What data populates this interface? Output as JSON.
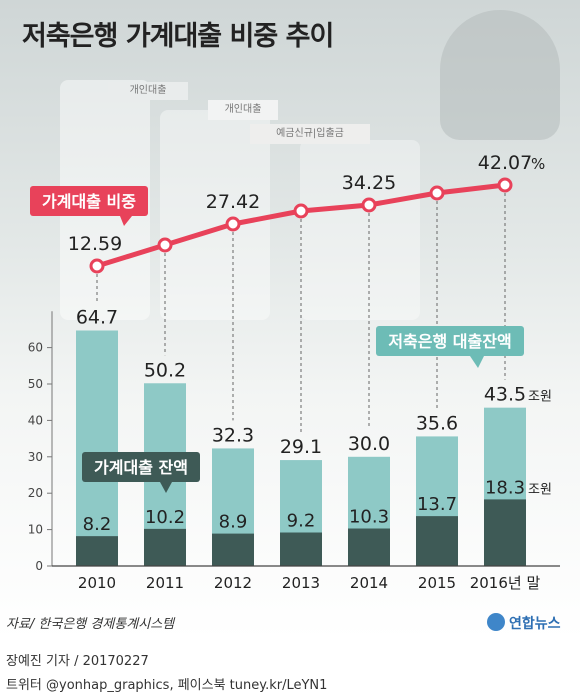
{
  "header": {
    "title": "저축은행 가계대출 비중 추이"
  },
  "background_signs": {
    "sign1": "개인대출",
    "sign2": "개인대출",
    "sign3": "예금신규|입출금"
  },
  "source": "자료/ 한국은행 경제통계시스템",
  "logo": "연합뉴스",
  "credit": "장예진 기자 / 20170227",
  "twitter": "트위터 @yonhap_graphics, 페이스북 tuney.kr/LeYN1",
  "colors": {
    "accent": "#e8425a",
    "total": "#8ec9c6",
    "household": "#3e5a56"
  },
  "chart_data": {
    "type": "bar",
    "categories": [
      "2010",
      "2011",
      "2012",
      "2013",
      "2014",
      "2015",
      "2016년 말"
    ],
    "ylim": [
      0,
      70
    ],
    "yticks": [
      "0",
      "10",
      "20",
      "30",
      "40",
      "50",
      "60"
    ],
    "series": [
      {
        "name": "저축은행 대출잔액",
        "values": [
          64.7,
          50.2,
          32.3,
          29.1,
          30.0,
          35.6,
          43.5
        ],
        "labels": [
          "64.7",
          "50.2",
          "32.3",
          "29.1",
          "30.0",
          "35.6",
          "43.5"
        ]
      },
      {
        "name": "가계대출 잔액",
        "values": [
          8.2,
          10.2,
          8.9,
          9.2,
          10.3,
          13.7,
          18.3
        ],
        "labels": [
          "8.2",
          "10.2",
          "8.9",
          "9.2",
          "10.3",
          "13.7",
          "18.3"
        ]
      },
      {
        "name": "가계대출 비중",
        "values": [
          12.59,
          null,
          27.42,
          null,
          34.25,
          null,
          42.07
        ],
        "labels": [
          "12.59",
          "",
          "27.42",
          "",
          "34.25",
          "",
          "42.07"
        ]
      }
    ],
    "unit_total": "조원",
    "unit_household": "조원",
    "unit_share": "%"
  }
}
